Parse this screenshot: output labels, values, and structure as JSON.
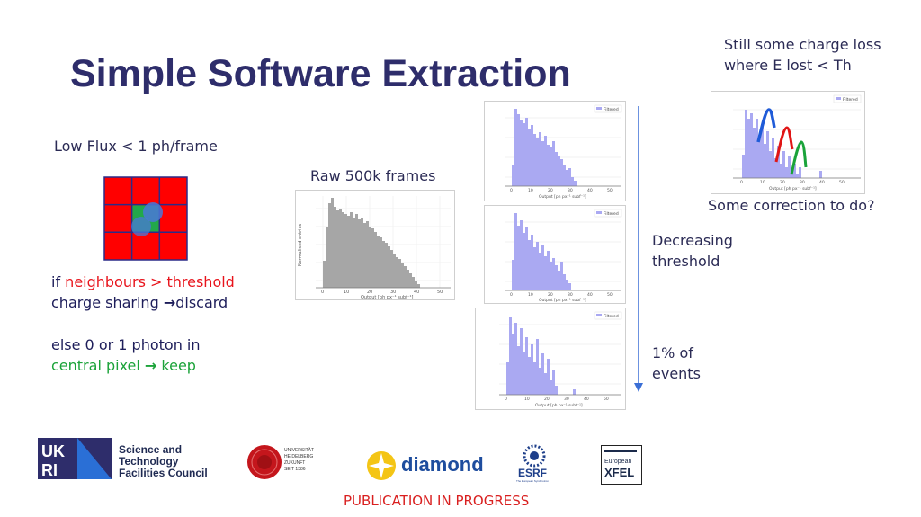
{
  "slide": {
    "title": "Simple Software Extraction",
    "low_flux": "Low Flux < 1 ph/frame",
    "raw_frames": "Raw 500k frames",
    "charge_loss_1": "Still some charge loss",
    "charge_loss_2": "where E lost < Th",
    "correction": "Some correction to do?",
    "decreasing_1": "Decreasing",
    "decreasing_2": "threshold",
    "percent_1": "1% of",
    "percent_2": "events",
    "rule_if": "if ",
    "rule_neighbours": "neighbours > threshold",
    "rule_sharing": "charge sharing ",
    "rule_discard": "discard",
    "rule_else": "else 0 or 1 photon in",
    "rule_central": "central pixel ",
    "rule_keep": " keep",
    "publication": "PUBLICATION IN PROGRESS"
  },
  "plots": {
    "legend": "Filtered",
    "xlabel": "Output [ph px⁻¹ subf⁻¹]",
    "ylabel": "Normalised entries",
    "xticks": [
      "0",
      "10",
      "20",
      "30",
      "40",
      "50"
    ],
    "raw_xticks": [
      "0",
      "10",
      "20",
      "30",
      "40",
      "50"
    ],
    "raw_xlabel": "Output [ph px⁻¹ subf⁻¹]",
    "raw_ylabel": "Normalised entries"
  },
  "logos": {
    "ukri_1": "Science and",
    "ukri_2": "Technology",
    "ukri_3": "Facilities Council",
    "heidelberg_1": "UNIVERSITÄT",
    "heidelberg_2": "HEIDELBERG",
    "heidelberg_3": "ZUKUNFT",
    "heidelberg_4": "SEIT 1386",
    "diamond": "diamond",
    "esrf": "ESRF",
    "esrf_sub": "The European Synchrotron",
    "xfel_1": "European",
    "xfel_2": "XFEL"
  },
  "colors": {
    "title": "#2e2d6b",
    "red": "#e8141c",
    "green": "#1ca33a",
    "hist_blue": "#aaa9f2",
    "hist_gray": "#a6a6a6",
    "arrow": "#3b6fd6"
  }
}
